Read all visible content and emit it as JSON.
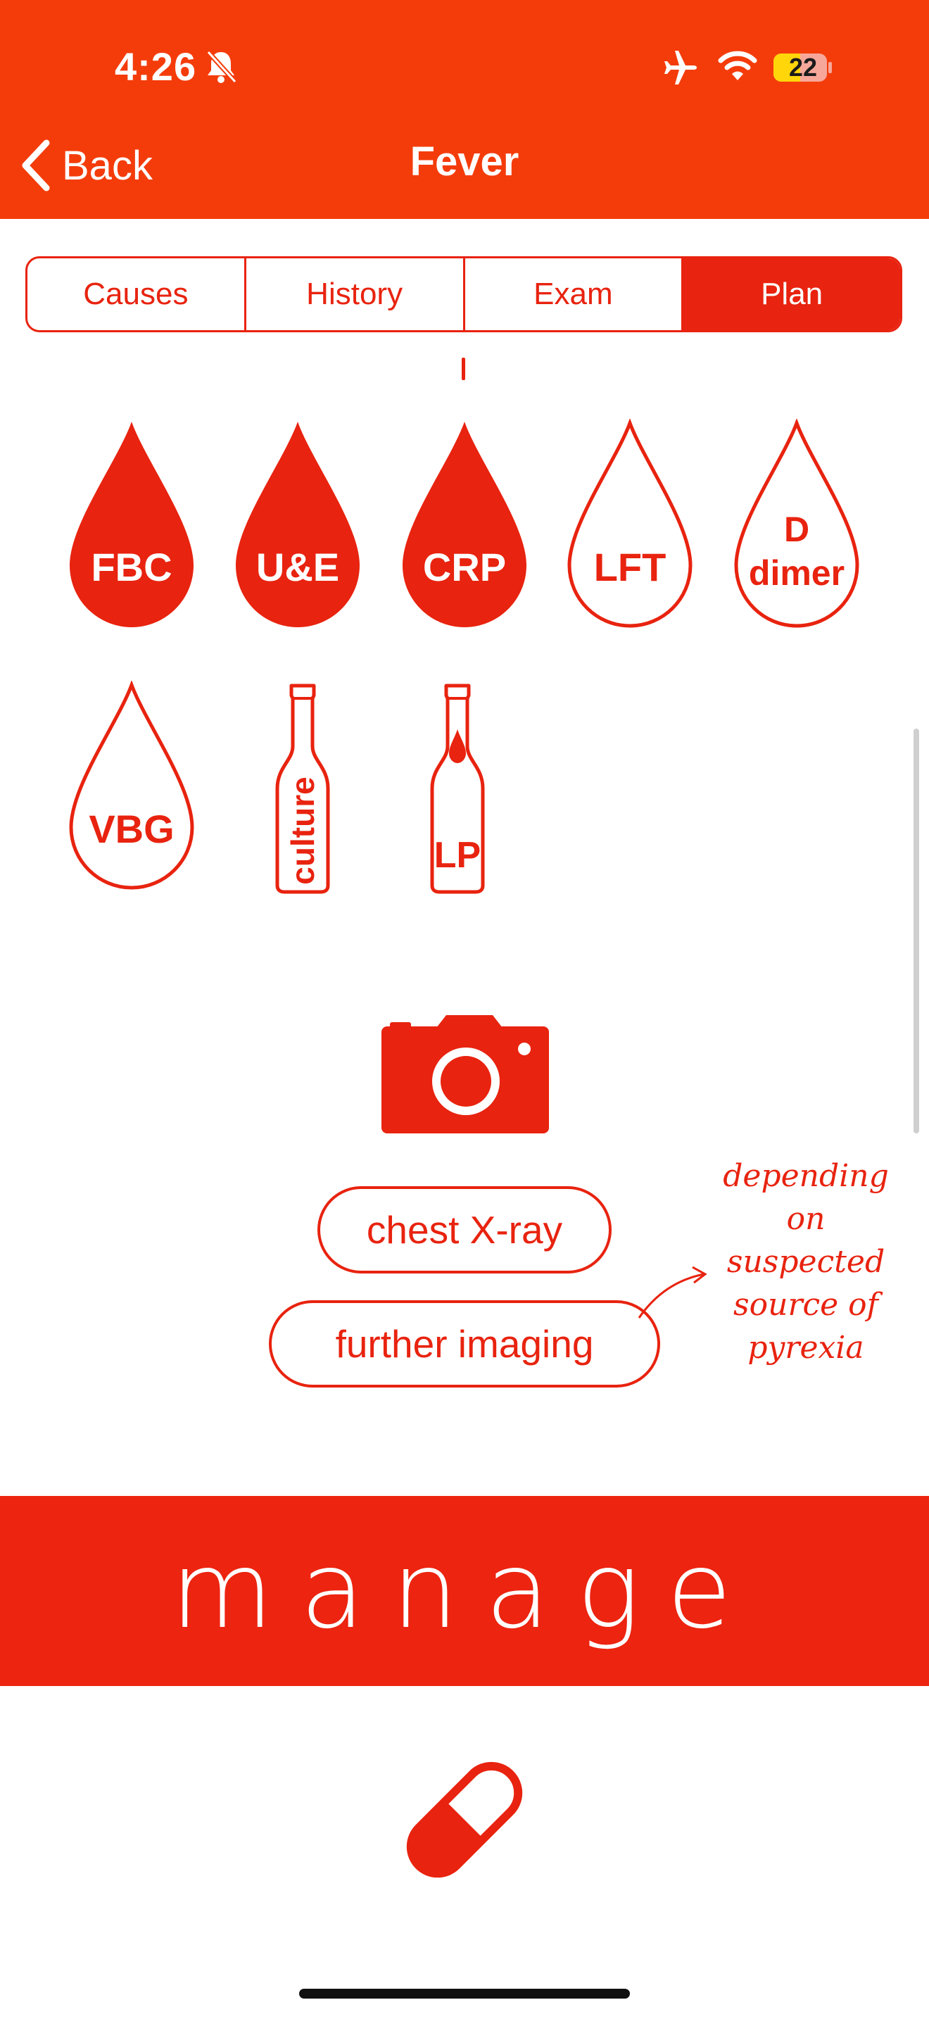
{
  "status_bar": {
    "time": "4:26",
    "battery_level": "22"
  },
  "nav": {
    "back_label": "Back",
    "title": "Fever"
  },
  "tabs": [
    {
      "label": "Causes",
      "active": false
    },
    {
      "label": "History",
      "active": false
    },
    {
      "label": "Exam",
      "active": false
    },
    {
      "label": "Plan",
      "active": true
    }
  ],
  "tests": {
    "row1": [
      {
        "label": "FBC",
        "filled": true
      },
      {
        "label": "U&E",
        "filled": true
      },
      {
        "label": "CRP",
        "filled": true
      },
      {
        "label": "LFT",
        "filled": false
      },
      {
        "label_line1": "D",
        "label_line2": "dimer",
        "filled": false
      }
    ],
    "vbg": "VBG",
    "culture": "culture",
    "lp": "LP"
  },
  "imaging": {
    "chest_xray": "chest X-ray",
    "further_imaging": "further imaging",
    "annotation": [
      "depending",
      "on",
      "suspected",
      "source of",
      "pyrexia"
    ]
  },
  "manage": {
    "label": "manage"
  },
  "colors": {
    "header": "#f43c0a",
    "accent": "#e8230f",
    "banner": "#ec2410"
  }
}
